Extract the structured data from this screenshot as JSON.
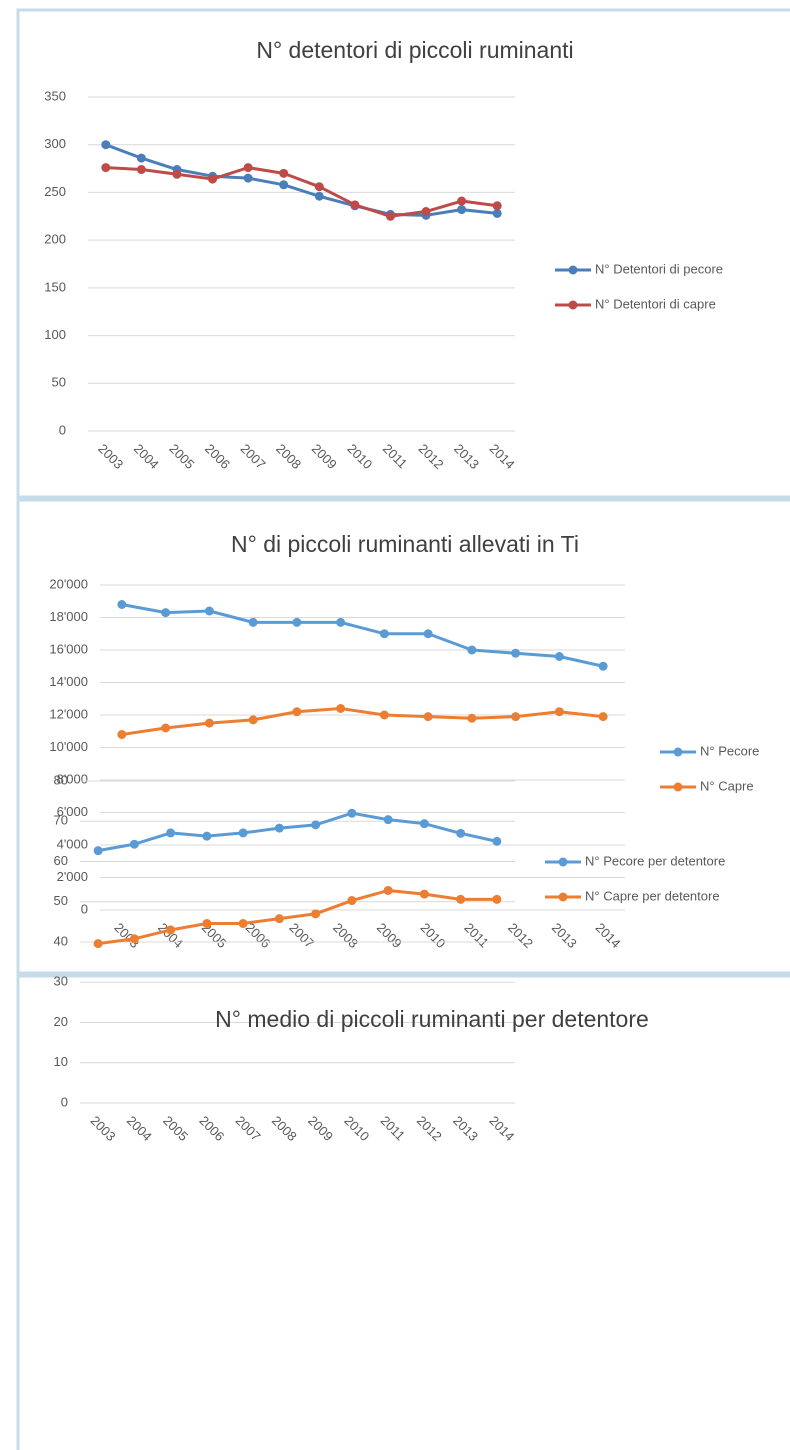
{
  "chart_data": [
    {
      "type": "line",
      "title": "N°  detentori di piccoli ruminanti",
      "categories": [
        "2003",
        "2004",
        "2005",
        "2006",
        "2007",
        "2008",
        "2009",
        "2010",
        "2011",
        "2012",
        "2013",
        "2014"
      ],
      "series": [
        {
          "name": "N° Detentori di pecore",
          "color": "#4a7ebb",
          "values": [
            300,
            286,
            274,
            267,
            265,
            258,
            246,
            236,
            227,
            226,
            232,
            228
          ]
        },
        {
          "name": "N° Detentori di capre",
          "color": "#be4b48",
          "values": [
            276,
            274,
            269,
            264,
            276,
            270,
            256,
            237,
            225,
            230,
            241,
            236
          ]
        }
      ],
      "ylim": [
        0,
        350
      ],
      "yticks": [
        0,
        50,
        100,
        150,
        200,
        250,
        300,
        350
      ],
      "grid": true,
      "legend": "right"
    },
    {
      "type": "line",
      "title": "N° di piccoli ruminanti allevati in Ti",
      "categories": [
        "2003",
        "2004",
        "2005",
        "2006",
        "2007",
        "2008",
        "2009",
        "2010",
        "2011",
        "2012",
        "2013",
        "2014"
      ],
      "series": [
        {
          "name": "N° Pecore",
          "color": "#5b9bd5",
          "values": [
            18800,
            18300,
            18400,
            17700,
            17700,
            17700,
            17000,
            17000,
            16000,
            15800,
            15600,
            15000
          ]
        },
        {
          "name": "N° Capre",
          "color": "#ed7d31",
          "values": [
            10800,
            11200,
            11500,
            11700,
            12200,
            12400,
            12000,
            11900,
            11800,
            11900,
            12200,
            11900
          ]
        }
      ],
      "ylim": [
        0,
        20000
      ],
      "yticks": [
        0,
        {
          "value": 2000,
          "label": "2'000"
        },
        {
          "value": 4000,
          "label": "4'000"
        },
        {
          "value": 6000,
          "label": "6'000"
        },
        {
          "value": 8000,
          "label": "8'000"
        },
        {
          "value": 10000,
          "label": "10'000"
        },
        {
          "value": 12000,
          "label": "12'000"
        },
        {
          "value": 14000,
          "label": "14'000"
        },
        {
          "value": 16000,
          "label": "16'000"
        },
        {
          "value": 18000,
          "label": "18'000"
        },
        {
          "value": 20000,
          "label": "20'000"
        }
      ],
      "grid": true,
      "legend": "right"
    },
    {
      "type": "line",
      "title": "N° medio di piccoli ruminanti per detentore",
      "categories": [
        "2003",
        "2004",
        "2005",
        "2006",
        "2007",
        "2008",
        "2009",
        "2010",
        "2011",
        "2012",
        "2013",
        "2014"
      ],
      "series": [
        {
          "name": "N° Pecore per detentore",
          "color": "#5b9bd5",
          "values": [
            62.7,
            64.3,
            67.1,
            66.3,
            67.1,
            68.3,
            69.1,
            72.0,
            70.4,
            69.4,
            67.0,
            65.0
          ]
        },
        {
          "name": "N° Capre per detentore",
          "color": "#ed7d31",
          "values": [
            39.6,
            40.8,
            43.0,
            44.6,
            44.6,
            45.8,
            47.0,
            50.3,
            52.8,
            51.9,
            50.6,
            50.6
          ]
        }
      ],
      "ylim": [
        0,
        80
      ],
      "yticks": [
        0,
        10,
        20,
        30,
        40,
        50,
        60,
        70,
        80
      ],
      "grid": true,
      "legend": "right"
    }
  ]
}
